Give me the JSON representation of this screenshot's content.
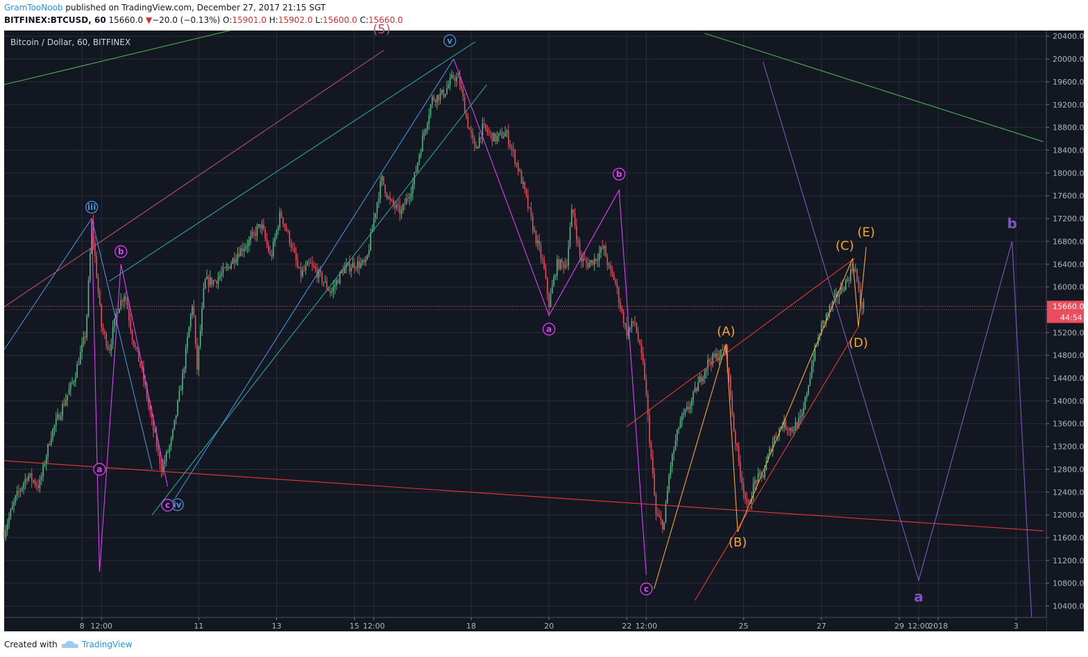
{
  "header": {
    "author": "GramTooNoob",
    "published": "published on TradingView.com, December 27, 2017 21:15 SGT",
    "symbol": "BITFINEX:BTCUSD, 60",
    "last": "15660.0",
    "change_symbol": "▼",
    "change": "−20.0 (−0.13%)",
    "o_label": "O:",
    "o_value": "15901.0",
    "h_label": "H:",
    "h_value": "15902.0",
    "l_label": "L:",
    "l_value": "15600.0",
    "c_label": "C:",
    "c_value": "15660.0"
  },
  "footer": {
    "created_with": "Created with",
    "brand": "TradingView"
  },
  "colors": {
    "background": "#131722",
    "grid": "#2a2e39",
    "up": "#53b987",
    "down": "#eb4d5c",
    "magenta": "#e040fb",
    "blue": "#4a90d9",
    "orange": "#f7a534",
    "red": "#e53935",
    "green": "#4caf50",
    "purple": "#7e57c2",
    "teal": "#26a69a",
    "pink": "#b5536f"
  },
  "chart_data": {
    "type": "candlestick",
    "title": "Bitcoin / Dollar, 60, BITFINEX",
    "ylim": [
      10200,
      20500
    ],
    "y_ticks": [
      "10400.0",
      "10800.0",
      "11200.0",
      "11600.0",
      "12000.0",
      "12400.0",
      "12800.0",
      "13200.0",
      "13600.0",
      "14000.0",
      "14400.0",
      "14800.0",
      "15200.0",
      "15600.0",
      "16000.0",
      "16400.0",
      "16800.0",
      "17200.0",
      "17600.0",
      "18000.0",
      "18400.0",
      "18800.0",
      "19200.0",
      "19600.0",
      "20000.0",
      "20400.0"
    ],
    "x_ticks": [
      {
        "label": "8",
        "t": 2.0
      },
      {
        "label": "12:00",
        "t": 2.5
      },
      {
        "label": "11",
        "t": 5.0
      },
      {
        "label": "13",
        "t": 7.0
      },
      {
        "label": "15",
        "t": 9.0
      },
      {
        "label": "12:00",
        "t": 9.5
      },
      {
        "label": "18",
        "t": 12.0
      },
      {
        "label": "20",
        "t": 14.0
      },
      {
        "label": "22",
        "t": 16.0
      },
      {
        "label": "12:00",
        "t": 16.5
      },
      {
        "label": "25",
        "t": 19.0
      },
      {
        "label": "27",
        "t": 21.0
      },
      {
        "label": "29",
        "t": 23.0
      },
      {
        "label": "12:00",
        "t": 23.5
      },
      {
        "label": "2018",
        "t": 24.0
      },
      {
        "label": "3",
        "t": 26.0
      }
    ],
    "last_price": "15660.0",
    "countdown": "44:54",
    "anchors": [
      [
        0.0,
        11700
      ],
      [
        0.3,
        12300
      ],
      [
        0.6,
        12700
      ],
      [
        0.9,
        12500
      ],
      [
        1.2,
        13400
      ],
      [
        1.5,
        13900
      ],
      [
        1.8,
        14400
      ],
      [
        2.1,
        15200
      ],
      [
        2.25,
        17100
      ],
      [
        2.35,
        16400
      ],
      [
        2.5,
        15300
      ],
      [
        2.7,
        14900
      ],
      [
        2.9,
        15600
      ],
      [
        3.1,
        15900
      ],
      [
        3.3,
        15100
      ],
      [
        3.55,
        14500
      ],
      [
        3.8,
        13600
      ],
      [
        4.05,
        12800
      ],
      [
        4.3,
        13300
      ],
      [
        4.6,
        14500
      ],
      [
        4.85,
        15800
      ],
      [
        4.95,
        14500
      ],
      [
        5.15,
        16100
      ],
      [
        5.4,
        16100
      ],
      [
        5.7,
        16300
      ],
      [
        6.0,
        16600
      ],
      [
        6.3,
        16800
      ],
      [
        6.6,
        17100
      ],
      [
        6.85,
        16500
      ],
      [
        7.1,
        17300
      ],
      [
        7.35,
        16800
      ],
      [
        7.6,
        16200
      ],
      [
        7.85,
        16400
      ],
      [
        8.1,
        16200
      ],
      [
        8.4,
        15900
      ],
      [
        8.7,
        16300
      ],
      [
        9.0,
        16400
      ],
      [
        9.3,
        16400
      ],
      [
        9.5,
        17200
      ],
      [
        9.7,
        17900
      ],
      [
        9.9,
        17500
      ],
      [
        10.2,
        17300
      ],
      [
        10.5,
        17800
      ],
      [
        10.75,
        18600
      ],
      [
        11.0,
        19300
      ],
      [
        11.3,
        19400
      ],
      [
        11.55,
        19700
      ],
      [
        11.7,
        19600
      ],
      [
        11.9,
        18900
      ],
      [
        12.1,
        18400
      ],
      [
        12.3,
        18800
      ],
      [
        12.6,
        18600
      ],
      [
        12.9,
        18700
      ],
      [
        13.2,
        18100
      ],
      [
        13.4,
        17600
      ],
      [
        13.6,
        17000
      ],
      [
        13.85,
        16400
      ],
      [
        14.0,
        15700
      ],
      [
        14.2,
        16400
      ],
      [
        14.45,
        16400
      ],
      [
        14.6,
        17400
      ],
      [
        14.8,
        16500
      ],
      [
        15.0,
        16400
      ],
      [
        15.2,
        16500
      ],
      [
        15.4,
        16700
      ],
      [
        15.55,
        16300
      ],
      [
        15.7,
        16100
      ],
      [
        15.85,
        15600
      ],
      [
        16.0,
        15200
      ],
      [
        16.2,
        15400
      ],
      [
        16.45,
        14500
      ],
      [
        16.6,
        13200
      ],
      [
        16.75,
        12000
      ],
      [
        16.95,
        11800
      ],
      [
        17.1,
        12800
      ],
      [
        17.35,
        13600
      ],
      [
        17.6,
        13900
      ],
      [
        17.9,
        14400
      ],
      [
        18.1,
        14700
      ],
      [
        18.35,
        14800
      ],
      [
        18.55,
        14900
      ],
      [
        18.75,
        13500
      ],
      [
        18.9,
        12800
      ],
      [
        19.1,
        12100
      ],
      [
        19.3,
        12600
      ],
      [
        19.5,
        12700
      ],
      [
        19.75,
        13300
      ],
      [
        20.0,
        13600
      ],
      [
        20.25,
        13500
      ],
      [
        20.5,
        13700
      ],
      [
        20.8,
        14800
      ],
      [
        21.0,
        15300
      ],
      [
        21.2,
        15600
      ],
      [
        21.45,
        15900
      ],
      [
        21.65,
        16100
      ],
      [
        21.85,
        16400
      ],
      [
        22.0,
        15700
      ],
      [
        22.12,
        15660
      ]
    ],
    "overlays": [
      {
        "color": "#4caf50",
        "points": [
          [
            0.0,
            19550
          ],
          [
            5.8,
            20500
          ]
        ]
      },
      {
        "color": "#4caf50",
        "points": [
          [
            18.0,
            20450
          ],
          [
            26.7,
            18550
          ]
        ]
      },
      {
        "color": "#e53935",
        "points": [
          [
            0.0,
            12950
          ],
          [
            26.7,
            11720
          ]
        ]
      },
      {
        "color": "#e53935",
        "points": [
          [
            16.0,
            13550
          ],
          [
            21.85,
            16500
          ]
        ]
      },
      {
        "color": "#e53935",
        "points": [
          [
            17.75,
            10500
          ],
          [
            21.95,
            15300
          ]
        ]
      },
      {
        "color": "#4a90d9",
        "points": [
          [
            0.0,
            14900
          ],
          [
            2.25,
            17200
          ],
          [
            3.8,
            12800
          ]
        ]
      },
      {
        "color": "#4a90d9",
        "points": [
          [
            4.4,
            12300
          ],
          [
            11.55,
            20000
          ]
        ]
      },
      {
        "color": "#26a69a",
        "points": [
          [
            3.8,
            12000
          ],
          [
            12.4,
            19550
          ]
        ]
      },
      {
        "color": "#26a69a",
        "points": [
          [
            2.7,
            16100
          ],
          [
            12.1,
            20300
          ]
        ]
      },
      {
        "color": "#b5536f",
        "points": [
          [
            0.0,
            15650
          ],
          [
            9.75,
            20150
          ]
        ]
      },
      {
        "color": "#e040fb",
        "points": [
          [
            2.25,
            17200
          ],
          [
            2.45,
            11000
          ],
          [
            3.0,
            16400
          ],
          [
            4.2,
            12500
          ]
        ]
      },
      {
        "color": "#e040fb",
        "points": [
          [
            11.55,
            20000
          ],
          [
            14.0,
            15500
          ],
          [
            15.8,
            17700
          ],
          [
            16.5,
            10950
          ]
        ]
      },
      {
        "color": "#f7a534",
        "points": [
          [
            16.7,
            10700
          ],
          [
            18.55,
            15000
          ],
          [
            18.85,
            11700
          ],
          [
            21.8,
            16500
          ],
          [
            21.95,
            15300
          ],
          [
            22.15,
            16700
          ]
        ]
      },
      {
        "color": "#7e57c2",
        "points": [
          [
            19.5,
            19950
          ],
          [
            23.5,
            10850
          ],
          [
            25.9,
            16800
          ],
          [
            26.4,
            10200
          ]
        ]
      }
    ],
    "labels": [
      {
        "text": "iii",
        "style": "circle",
        "color": "#4a90d9",
        "t": 2.25,
        "p": 17400
      },
      {
        "text": "iv",
        "style": "circle",
        "color": "#4a90d9",
        "t": 4.45,
        "p": 12180
      },
      {
        "text": "v",
        "style": "circle",
        "color": "#4a90d9",
        "t": 11.45,
        "p": 20320
      },
      {
        "text": "a",
        "style": "circle",
        "color": "#e040fb",
        "t": 2.45,
        "p": 12800
      },
      {
        "text": "b",
        "style": "circle",
        "color": "#e040fb",
        "t": 3.0,
        "p": 16620
      },
      {
        "text": "c",
        "style": "circle",
        "color": "#e040fb",
        "t": 4.2,
        "p": 12170
      },
      {
        "text": "a",
        "style": "circle",
        "color": "#e040fb",
        "t": 14.0,
        "p": 15260
      },
      {
        "text": "b",
        "style": "circle",
        "color": "#e040fb",
        "t": 15.8,
        "p": 17980
      },
      {
        "text": "c",
        "style": "circle",
        "color": "#e040fb",
        "t": 16.5,
        "p": 10700
      },
      {
        "text": "(5)",
        "style": "text",
        "color": "#b5536f",
        "t": 9.7,
        "p": 20450
      },
      {
        "text": "(A)",
        "style": "text",
        "color": "#f7a534",
        "t": 18.55,
        "p": 15150
      },
      {
        "text": "(B)",
        "style": "text",
        "color": "#f7a534",
        "t": 18.85,
        "p": 11450
      },
      {
        "text": "(C)",
        "style": "text",
        "color": "#f7a534",
        "t": 21.6,
        "p": 16650
      },
      {
        "text": "(D)",
        "style": "text",
        "color": "#f7a534",
        "t": 21.95,
        "p": 14950
      },
      {
        "text": "(E)",
        "style": "text",
        "color": "#f7a534",
        "t": 22.15,
        "p": 16890
      },
      {
        "text": "a",
        "style": "bold",
        "color": "#7e57c2",
        "t": 23.5,
        "p": 10480
      },
      {
        "text": "b",
        "style": "bold",
        "color": "#7e57c2",
        "t": 25.9,
        "p": 17030
      }
    ]
  }
}
